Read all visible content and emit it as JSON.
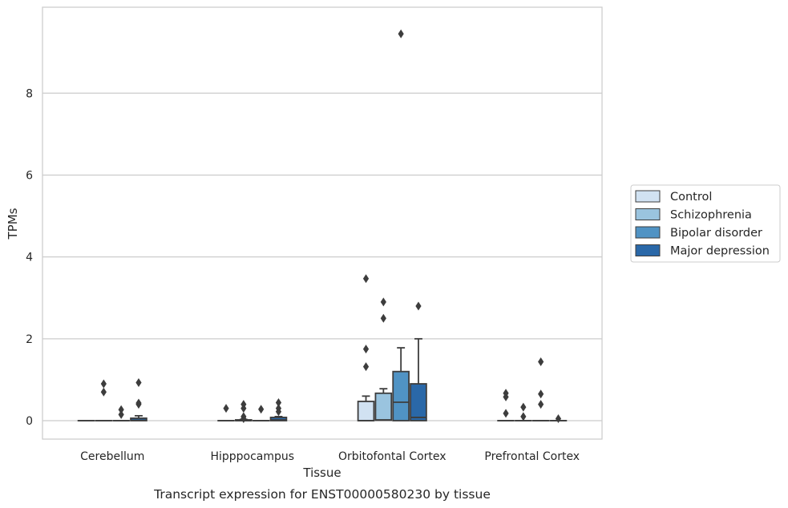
{
  "chart_data": {
    "type": "box",
    "title": "",
    "caption": "Transcript expression for ENST00000580230 by tissue",
    "xlabel": "Tissue",
    "ylabel": "TPMs",
    "ylim": [
      -0.45,
      10.1
    ],
    "yticks": [
      0,
      2,
      4,
      6,
      8
    ],
    "grid": "horizontal",
    "legend": "right",
    "categories": [
      "Cerebellum",
      "Hipppocampus",
      "Orbitofontal Cortex",
      "Prefrontal Cortex"
    ],
    "series": [
      {
        "name": "Control",
        "color": "#d1e2f2",
        "boxes": [
          {
            "q1": 0,
            "median": 0,
            "q3": 0,
            "whisker_low": 0,
            "whisker_high": 0,
            "outliers": []
          },
          {
            "q1": 0,
            "median": 0,
            "q3": 0,
            "whisker_low": 0,
            "whisker_high": 0,
            "outliers": [
              0.3
            ]
          },
          {
            "q1": 0,
            "median": 0,
            "q3": 0.47,
            "whisker_low": 0,
            "whisker_high": 0.6,
            "outliers": [
              1.32,
              1.75,
              3.47
            ]
          },
          {
            "q1": 0,
            "median": 0,
            "q3": 0,
            "whisker_low": 0,
            "whisker_high": 0,
            "outliers": [
              0.18,
              0.58,
              0.67
            ]
          }
        ]
      },
      {
        "name": "Schizophrenia",
        "color": "#9ac4df",
        "boxes": [
          {
            "q1": 0,
            "median": 0,
            "q3": 0,
            "whisker_low": 0,
            "whisker_high": 0,
            "outliers": [
              0.7,
              0.9
            ]
          },
          {
            "q1": 0,
            "median": 0,
            "q3": 0.02,
            "whisker_low": 0,
            "whisker_high": 0.03,
            "outliers": [
              0.05,
              0.1,
              0.3,
              0.4
            ]
          },
          {
            "q1": 0.01,
            "median": 0.02,
            "q3": 0.67,
            "whisker_low": 0,
            "whisker_high": 0.78,
            "outliers": [
              2.5,
              2.9
            ]
          },
          {
            "q1": 0,
            "median": 0,
            "q3": 0,
            "whisker_low": 0,
            "whisker_high": 0,
            "outliers": [
              0.1,
              0.33
            ]
          }
        ]
      },
      {
        "name": "Bipolar disorder",
        "color": "#5093c4",
        "boxes": [
          {
            "q1": 0,
            "median": 0,
            "q3": 0,
            "whisker_low": 0,
            "whisker_high": 0,
            "outliers": [
              0.15,
              0.27
            ]
          },
          {
            "q1": 0,
            "median": 0,
            "q3": 0,
            "whisker_low": 0,
            "whisker_high": 0,
            "outliers": [
              0.28
            ]
          },
          {
            "q1": 0,
            "median": 0.45,
            "q3": 1.2,
            "whisker_low": 0,
            "whisker_high": 1.78,
            "outliers": [
              9.45
            ]
          },
          {
            "q1": 0,
            "median": 0,
            "q3": 0,
            "whisker_low": 0,
            "whisker_high": 0,
            "outliers": [
              0.4,
              0.65,
              1.44
            ]
          }
        ]
      },
      {
        "name": "Major depression",
        "color": "#2a68a8",
        "boxes": [
          {
            "q1": 0,
            "median": 0.01,
            "q3": 0.06,
            "whisker_low": 0,
            "whisker_high": 0.12,
            "outliers": [
              0.4,
              0.43,
              0.93
            ]
          },
          {
            "q1": 0,
            "median": 0.02,
            "q3": 0.08,
            "whisker_low": 0,
            "whisker_high": 0.1,
            "outliers": [
              0.22,
              0.3,
              0.44
            ]
          },
          {
            "q1": 0,
            "median": 0.08,
            "q3": 0.9,
            "whisker_low": 0,
            "whisker_high": 2.0,
            "outliers": [
              2.8
            ]
          },
          {
            "q1": 0,
            "median": 0,
            "q3": 0,
            "whisker_low": 0,
            "whisker_high": 0,
            "outliers": [
              0.05
            ]
          }
        ]
      }
    ]
  }
}
